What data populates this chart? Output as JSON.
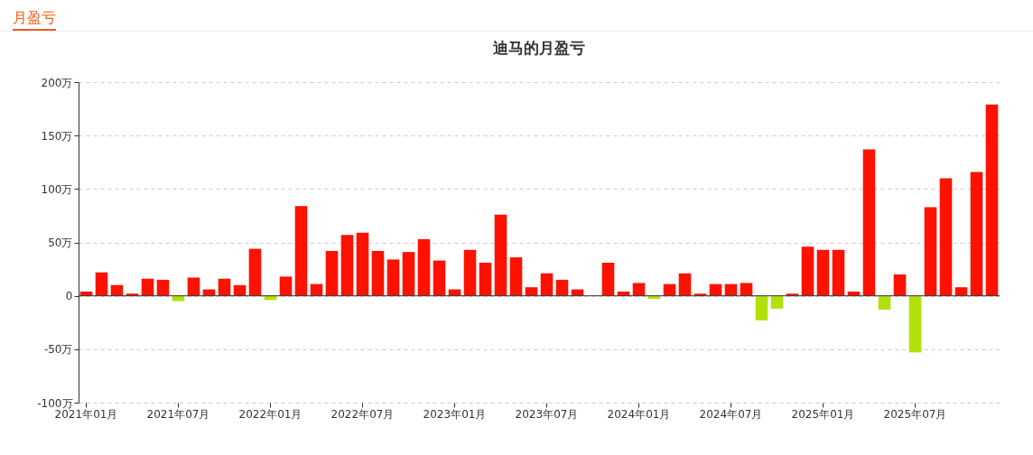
{
  "chart_data": {
    "type": "bar",
    "title": "迪马的月盈亏",
    "annotations": [
      "月盈亏"
    ],
    "categories": [
      "2021年01月",
      null,
      null,
      null,
      null,
      null,
      "2021年07月",
      null,
      null,
      null,
      null,
      null,
      "2022年01月",
      null,
      null,
      null,
      null,
      null,
      "2022年07月",
      null,
      null,
      null,
      null,
      null,
      "2023年01月",
      null,
      null,
      null,
      null,
      null,
      "2023年07月",
      null,
      null,
      null,
      null,
      null,
      "2024年01月",
      null,
      null,
      null,
      null,
      null,
      "2024年07月",
      null,
      null,
      null,
      null,
      null,
      "2025年01月",
      null,
      null,
      null,
      null,
      null,
      "2025年07月",
      null,
      null,
      null,
      null,
      null
    ],
    "values": [
      4,
      22,
      10,
      2,
      16,
      15,
      -5,
      17,
      6,
      16,
      10,
      44,
      -4,
      18,
      84,
      11,
      42,
      57,
      59,
      42,
      34,
      41,
      53,
      33,
      6,
      43,
      31,
      76,
      36,
      8,
      21,
      15,
      6,
      0,
      31,
      4,
      12,
      -3,
      11,
      21,
      2,
      11,
      11,
      12,
      -23,
      -12,
      2,
      46,
      43,
      43,
      4,
      137,
      -13,
      20,
      -53,
      83,
      110,
      8,
      116,
      179
    ],
    "colors": [
      "#ff1100",
      "#ff1100",
      "#ff1100",
      "#ff1100",
      "#ff1100",
      "#ff1100",
      "#b3e00a",
      "#ff1100",
      "#ff1100",
      "#ff1100",
      "#ff1100",
      "#ff1100",
      "#b3e00a",
      "#ff1100",
      "#ff1100",
      "#ff1100",
      "#ff1100",
      "#ff1100",
      "#ff1100",
      "#ff1100",
      "#ff1100",
      "#ff1100",
      "#ff1100",
      "#ff1100",
      "#ff1100",
      "#ff1100",
      "#ff1100",
      "#ff1100",
      "#ff1100",
      "#ff1100",
      "#ff1100",
      "#ff1100",
      "#ff1100",
      "#ff1100",
      "#ff1100",
      "#ff1100",
      "#ff1100",
      "#b3e00a",
      "#ff1100",
      "#ff1100",
      "#ff1100",
      "#ff1100",
      "#ff1100",
      "#ff1100",
      "#b3e00a",
      "#b3e00a",
      "#ff1100",
      "#ff1100",
      "#ff1100",
      "#ff1100",
      "#ff1100",
      "#ff1100",
      "#b3e00a",
      "#ff1100",
      "#b3e00a",
      "#ff1100",
      "#ff1100",
      "#ff1100",
      "#ff1100",
      "#ff1100"
    ],
    "ylim": [
      -100,
      200
    ],
    "yticks": [
      {
        "value": -100,
        "label": "-100万"
      },
      {
        "value": -50,
        "label": "-50万"
      },
      0,
      {
        "value": 50,
        "label": "50万"
      },
      {
        "value": 100,
        "label": "100万"
      },
      {
        "value": 150,
        "label": "150万"
      },
      {
        "value": 200,
        "label": "200万"
      }
    ],
    "grid": "y"
  }
}
